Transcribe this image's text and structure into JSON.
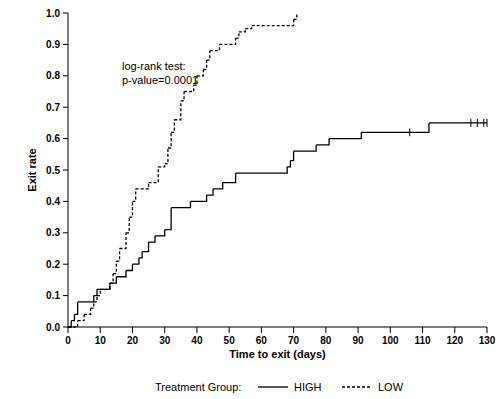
{
  "chart_data": {
    "type": "step",
    "x_label": "Time to exit (days)",
    "y_label": "Exit rate",
    "annotations": [
      "log-rank test:",
      "p-value=0.0001"
    ],
    "legend_title": "Treatment Group:",
    "legend": "bottom",
    "xlim": [
      0,
      130
    ],
    "ylim": [
      0,
      1
    ],
    "xticks": [
      0,
      10,
      20,
      30,
      40,
      50,
      60,
      70,
      80,
      90,
      100,
      110,
      120,
      130
    ],
    "yticks": [
      {
        "value": 0,
        "label": "0.0"
      },
      0.1,
      0.2,
      0.3,
      0.4,
      0.5,
      0.6,
      0.7,
      0.8,
      0.9,
      {
        "value": 1,
        "label": "1.0"
      }
    ],
    "series": [
      {
        "name": "HIGH",
        "color": "#000000",
        "line_style": "solid",
        "x": [
          0,
          1,
          2,
          3,
          8,
          9,
          13,
          15,
          18,
          20,
          22,
          23,
          25,
          27,
          30,
          32,
          38,
          43,
          45,
          48,
          52,
          68,
          69,
          70,
          77,
          81,
          91,
          112,
          130
        ],
        "values": [
          0,
          0.02,
          0.04,
          0.08,
          0.1,
          0.12,
          0.14,
          0.16,
          0.18,
          0.2,
          0.22,
          0.24,
          0.27,
          0.29,
          0.31,
          0.38,
          0.4,
          0.42,
          0.44,
          0.46,
          0.49,
          0.51,
          0.53,
          0.56,
          0.58,
          0.6,
          0.62,
          0.65,
          0.65
        ],
        "censored": [
          106,
          125,
          127,
          129,
          130
        ]
      },
      {
        "name": "LOW",
        "color": "#000000",
        "line_style": "dashed",
        "x": [
          0,
          3,
          5,
          7,
          8,
          9,
          10,
          13,
          14,
          15,
          16,
          18,
          19,
          20,
          21,
          25,
          28,
          30,
          31,
          32,
          33,
          35,
          36,
          39,
          40,
          42,
          43,
          44,
          47,
          52,
          53,
          55,
          57,
          70,
          71
        ],
        "values": [
          0,
          0.02,
          0.04,
          0.06,
          0.08,
          0.1,
          0.12,
          0.14,
          0.17,
          0.21,
          0.25,
          0.3,
          0.35,
          0.4,
          0.44,
          0.46,
          0.51,
          0.52,
          0.57,
          0.62,
          0.66,
          0.72,
          0.75,
          0.77,
          0.8,
          0.82,
          0.85,
          0.88,
          0.9,
          0.92,
          0.94,
          0.95,
          0.96,
          0.98,
          1.0
        ]
      }
    ]
  }
}
